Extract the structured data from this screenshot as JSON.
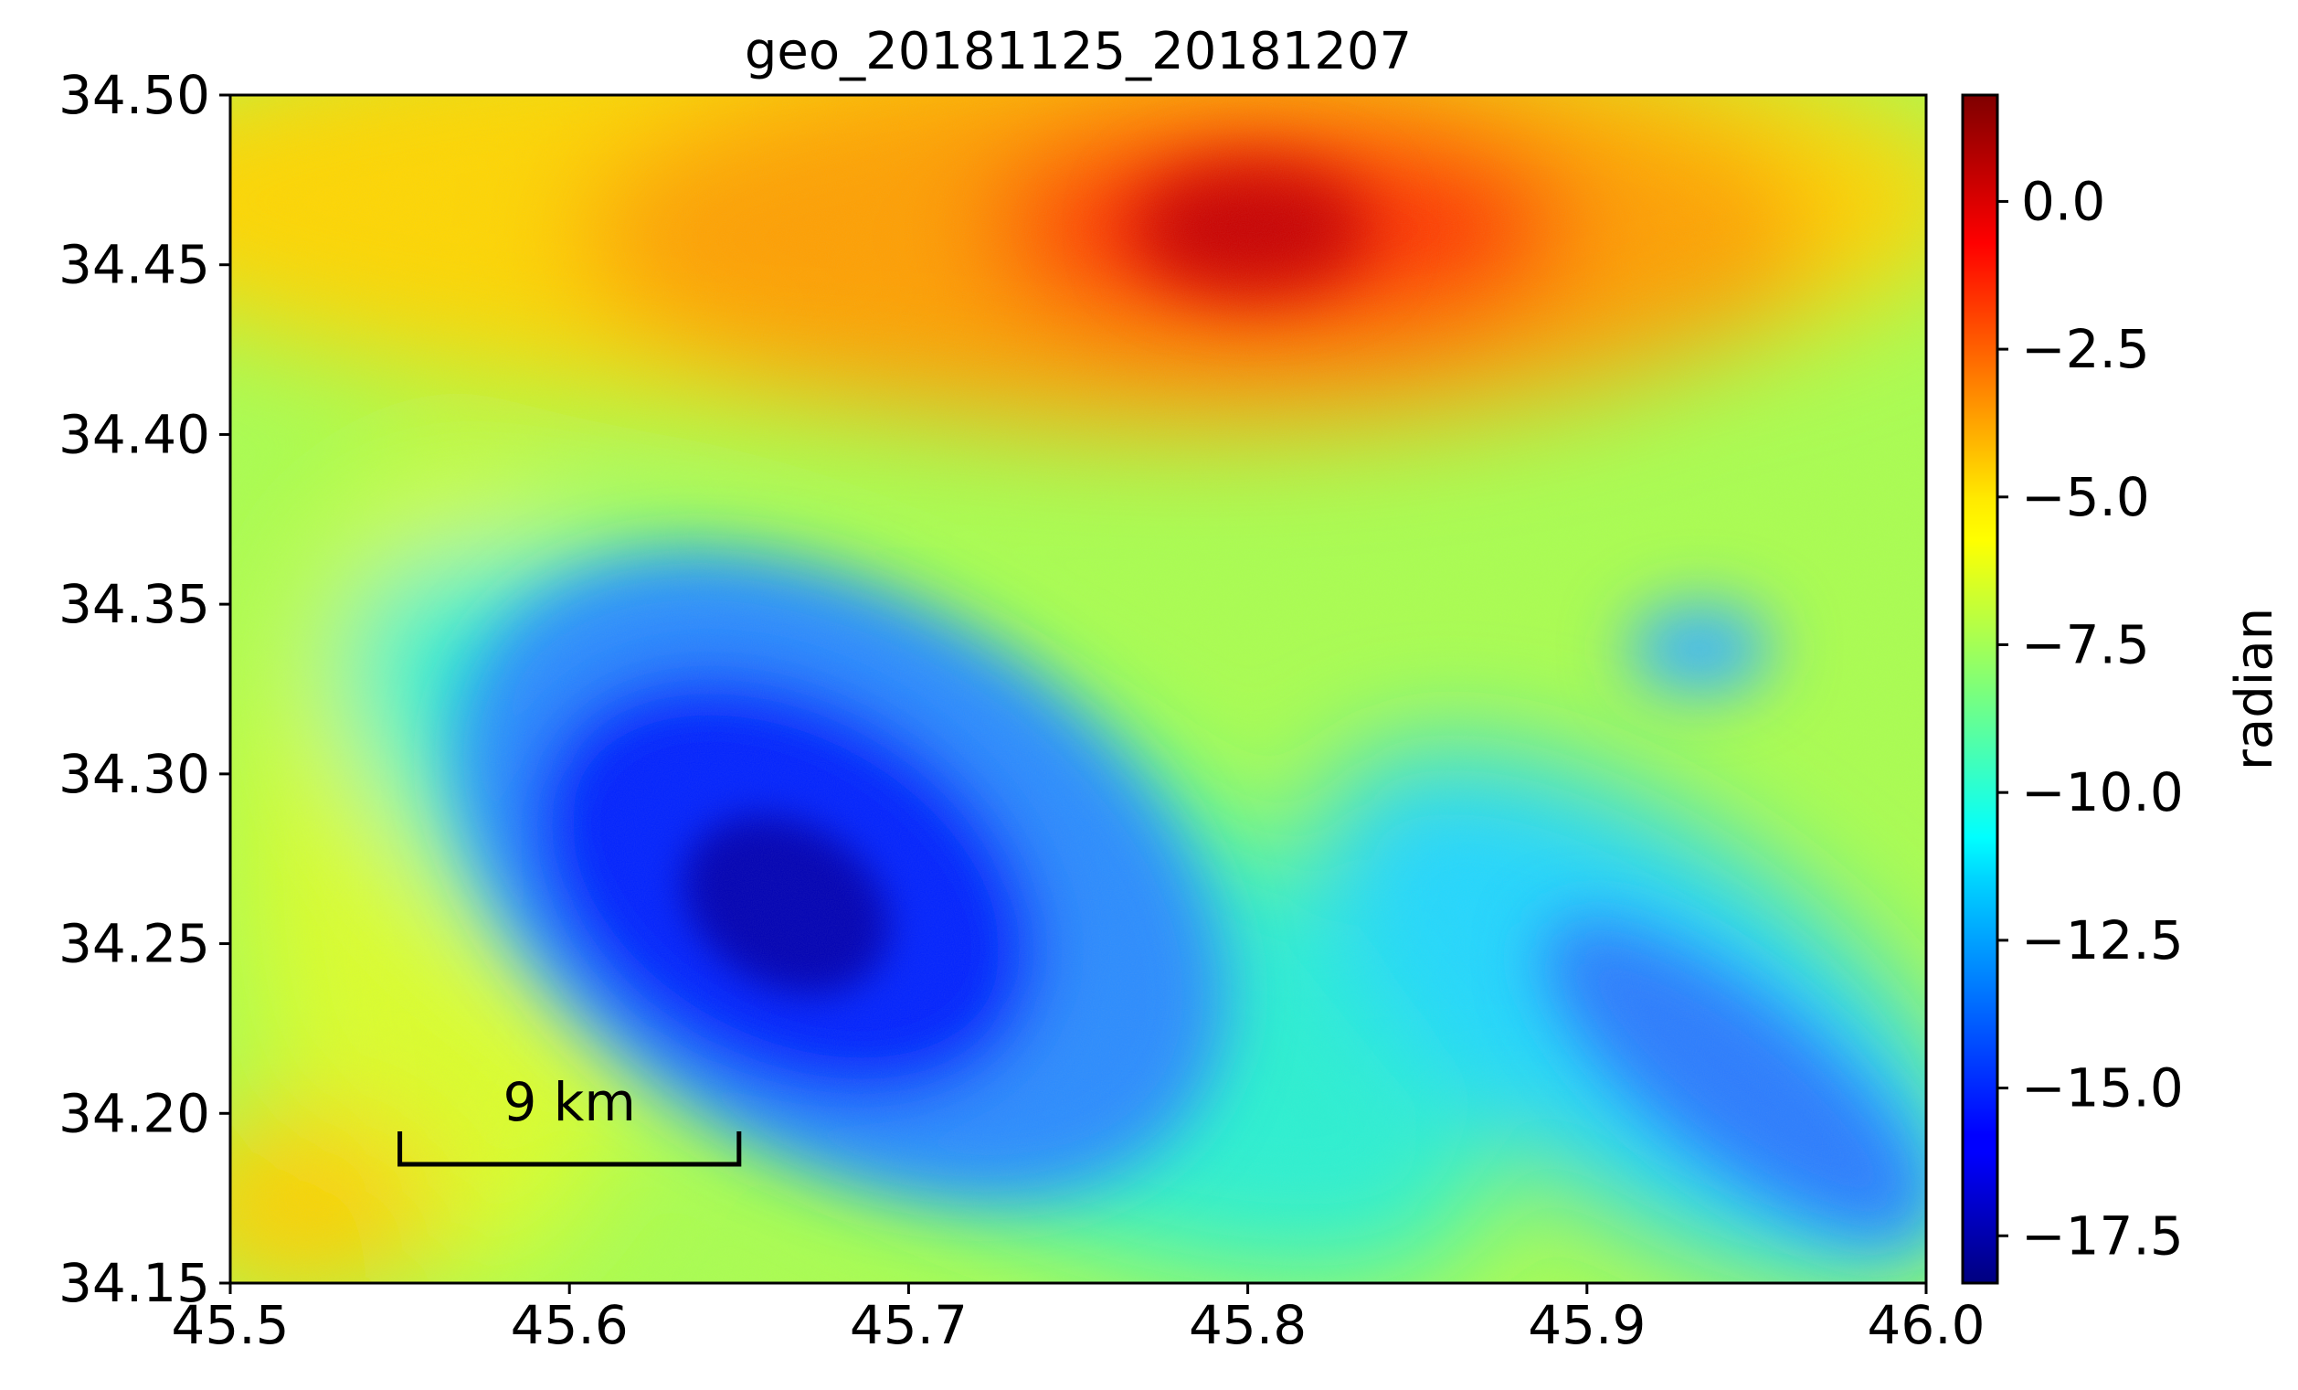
{
  "title": "geo_20181125_20181207",
  "map": {
    "x_ticks": [
      "45.5",
      "45.6",
      "45.7",
      "45.8",
      "45.9",
      "46.0"
    ],
    "y_ticks": [
      "34.50",
      "34.45",
      "34.40",
      "34.35",
      "34.30",
      "34.25",
      "34.20",
      "34.15"
    ],
    "xlim": [
      45.5,
      46.0
    ],
    "ylim": [
      34.15,
      34.5
    ],
    "scale_bar": {
      "label": "9 km",
      "lon_start": 45.55,
      "lon_end": 45.65,
      "lat": 34.185
    }
  },
  "colorbar": {
    "label": "radian",
    "colormap": "jet",
    "range": [
      -18.3,
      1.8
    ],
    "ticks": [
      "0.0",
      "−2.5",
      "−5.0",
      "−7.5",
      "−10.0",
      "−12.5",
      "−15.0",
      "−17.5"
    ],
    "tick_values": [
      0.0,
      -2.5,
      -5.0,
      -7.5,
      -10.0,
      -12.5,
      -15.0,
      -17.5
    ]
  },
  "colors": {
    "jet_dark_red": "#800000",
    "jet_red": "#ff0000",
    "jet_yellow": "#ffff00",
    "jet_cyan": "#00ffff",
    "jet_blue": "#0000ff",
    "jet_dark_blue": "#000080"
  }
}
